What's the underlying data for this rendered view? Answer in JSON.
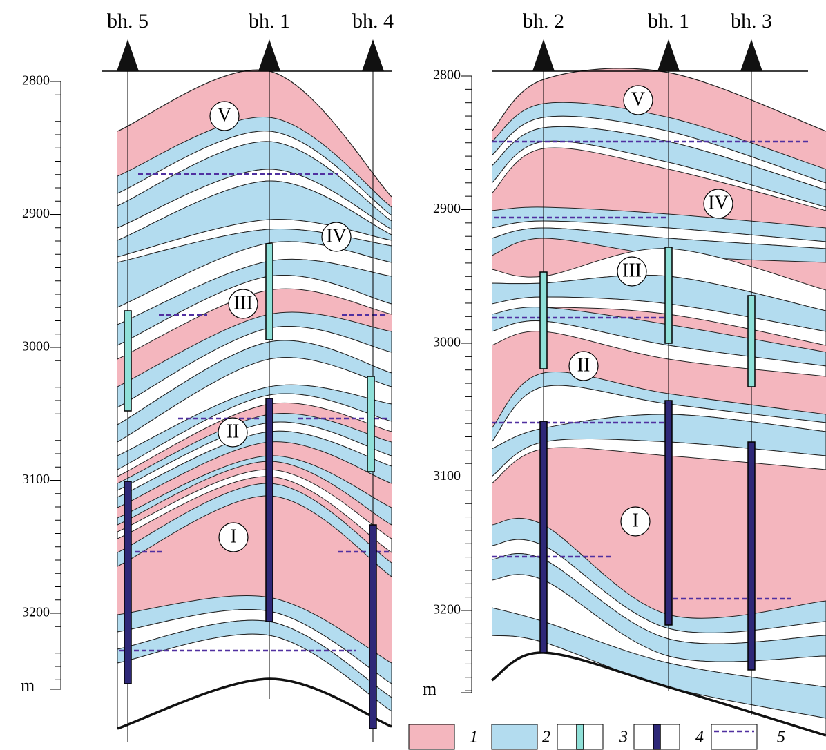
{
  "left_section": {
    "boreholes": [
      "bh. 5",
      "bh. 1",
      "bh. 4"
    ],
    "depth_ticks": [
      "2800",
      "2900",
      "3000",
      "3100",
      "3200"
    ],
    "depth_unit": "m",
    "units": [
      "V",
      "IV",
      "III",
      "II",
      "I"
    ]
  },
  "right_section": {
    "boreholes": [
      "bh. 2",
      "bh. 1",
      "bh. 3"
    ],
    "depth_ticks": [
      "2800",
      "2900",
      "3000",
      "3100",
      "3200"
    ],
    "depth_unit": "m",
    "units": [
      "V",
      "IV",
      "III",
      "II",
      "I"
    ]
  },
  "legend": [
    "1",
    "2",
    "3",
    "4",
    "5"
  ]
}
